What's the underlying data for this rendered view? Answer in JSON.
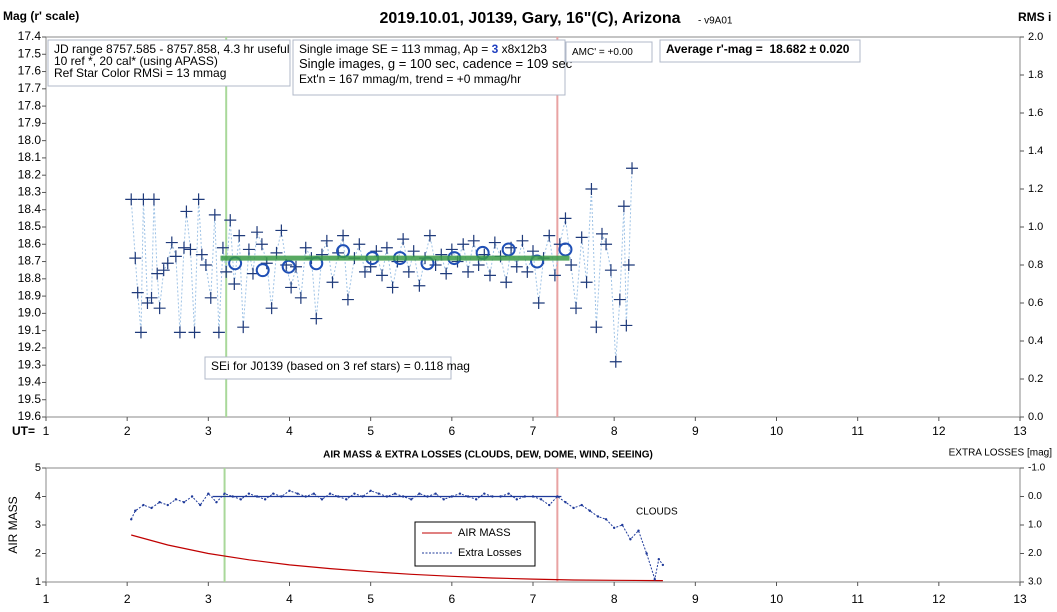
{
  "chart_data": [
    {
      "type": "scatter",
      "title": "2019.10.01, J0139, Gary, 16\"(C), Arizona",
      "subtitle": "- v9A01",
      "ylabel": "Mag (r' scale)",
      "y2label": "RMS i",
      "xlabel": "UT=",
      "xlim": [
        1,
        13
      ],
      "xticks": [
        1,
        2,
        3,
        4,
        5,
        6,
        7,
        8,
        9,
        10,
        11,
        12,
        13
      ],
      "ylim": [
        17.4,
        19.6
      ],
      "y_inverted": true,
      "yticks": [
        17.4,
        17.5,
        17.6,
        17.7,
        17.8,
        17.9,
        {
          "value": 18.0,
          "label": "18.0"
        },
        18.1,
        18.2,
        18.3,
        18.4,
        18.5,
        18.6,
        18.7,
        18.8,
        18.9,
        {
          "value": 19.0,
          "label": "19.0"
        },
        19.1,
        19.2,
        19.3,
        19.4,
        19.5,
        19.6
      ],
      "y2lim": [
        0,
        2
      ],
      "y2ticks": [
        {
          "value": 0,
          "label": "0.0"
        },
        0.2,
        0.4,
        0.6,
        0.8,
        {
          "value": 1,
          "label": "1.0"
        },
        1.2,
        1.4,
        1.6,
        1.8,
        {
          "value": 2,
          "label": "2.0"
        }
      ],
      "vlines": [
        {
          "x": 3.22,
          "color": "#a9d89a"
        },
        {
          "x": 7.3,
          "color": "#e9a3a3"
        }
      ],
      "series": [
        {
          "marker": "plus",
          "color": "#1f3a7a",
          "line_color": "#9fc3e6",
          "x": [
            2.05,
            2.1,
            2.13,
            2.17,
            2.2,
            2.25,
            2.3,
            2.33,
            2.37,
            2.4,
            2.45,
            2.5,
            2.55,
            2.6,
            2.65,
            2.7,
            2.73,
            2.78,
            2.83,
            2.88,
            2.92,
            2.97,
            3.03,
            3.08,
            3.13,
            3.18,
            3.22,
            3.27,
            3.32,
            3.38,
            3.43,
            3.5,
            3.55,
            3.6,
            3.66,
            3.72,
            3.78,
            3.84,
            3.9,
            3.96,
            4.02,
            4.08,
            4.14,
            4.2,
            4.27,
            4.33,
            4.4,
            4.46,
            4.53,
            4.6,
            4.66,
            4.72,
            4.8,
            4.86,
            4.93,
            5.0,
            5.07,
            5.14,
            5.2,
            5.27,
            5.33,
            5.4,
            5.47,
            5.53,
            5.6,
            5.67,
            5.73,
            5.8,
            5.87,
            5.93,
            6.0,
            6.07,
            6.14,
            6.2,
            6.27,
            6.33,
            6.4,
            6.47,
            6.53,
            6.6,
            6.67,
            6.73,
            6.8,
            6.87,
            6.93,
            7.0,
            7.07,
            7.13,
            7.2,
            7.27,
            7.33,
            7.4,
            7.47,
            7.53,
            7.6,
            7.66,
            7.72,
            7.78,
            7.85,
            7.9,
            7.96,
            8.02,
            8.07,
            8.12,
            8.15,
            8.18,
            8.22
          ],
          "values": [
            18.34,
            18.68,
            18.88,
            19.11,
            18.34,
            18.94,
            18.91,
            18.34,
            18.77,
            18.97,
            18.75,
            18.71,
            18.59,
            18.67,
            19.11,
            18.62,
            18.41,
            18.63,
            19.11,
            18.34,
            18.66,
            18.72,
            18.91,
            18.43,
            19.11,
            18.62,
            18.76,
            18.46,
            18.83,
            18.55,
            19.08,
            18.63,
            18.77,
            18.53,
            18.6,
            18.71,
            18.97,
            18.65,
            18.52,
            18.72,
            18.85,
            18.73,
            18.91,
            18.62,
            18.68,
            19.03,
            18.66,
            18.58,
            18.82,
            18.65,
            18.55,
            18.92,
            18.68,
            18.6,
            18.76,
            18.73,
            18.64,
            18.78,
            18.62,
            18.85,
            18.7,
            18.57,
            18.76,
            18.64,
            18.84,
            18.68,
            18.55,
            18.72,
            18.66,
            18.77,
            18.63,
            18.7,
            18.6,
            18.76,
            18.58,
            18.72,
            18.66,
            18.78,
            18.59,
            18.67,
            18.82,
            18.62,
            18.73,
            18.58,
            18.76,
            18.64,
            18.94,
            18.68,
            18.55,
            18.78,
            18.6,
            18.45,
            18.72,
            18.97,
            18.56,
            18.82,
            18.28,
            19.08,
            18.54,
            18.6,
            18.75,
            19.28,
            18.92,
            18.38,
            19.07,
            18.72,
            18.16
          ]
        },
        {
          "marker": "circle",
          "color": "#1f4fb5",
          "x": [
            3.33,
            3.67,
            3.99,
            4.33,
            4.66,
            5.02,
            5.36,
            5.7,
            6.03,
            6.38,
            6.7,
            7.05,
            7.4
          ],
          "values": [
            18.71,
            18.75,
            18.73,
            18.71,
            18.64,
            18.68,
            18.68,
            18.71,
            18.68,
            18.65,
            18.63,
            18.7,
            18.63
          ]
        },
        {
          "marker": "none",
          "color": "#3a9a45",
          "width": 5,
          "x": [
            3.15,
            7.45
          ],
          "values": [
            18.68,
            18.68
          ]
        }
      ],
      "info_boxes": [
        {
          "lines": [
            [
              {
                "text": "JD range 8757.585 - 8757.858, 4.3 hr useful"
              }
            ],
            [
              {
                "text": "10 ref *, 20 cal* (using APASS)"
              }
            ],
            [
              {
                "text": "Ref Star Color RMSi = 13 mmag"
              }
            ]
          ]
        },
        {
          "lines": [
            [
              {
                "text": "Single image SE = 113 mmag, Ap = "
              },
              {
                "text": "3",
                "color": "#1f3fbf",
                "bold": true
              },
              {
                "text": " x8x12b3"
              }
            ],
            [
              {
                "text": "Single images, g = 100 sec, cadence = 109 sec"
              }
            ],
            [
              {
                "text": "Ext'n = 167 mmag/m, trend = +0 mmag/hr"
              }
            ]
          ]
        },
        {
          "lines": [
            [
              {
                "text": "AMC' = +0.00"
              }
            ]
          ]
        },
        {
          "lines": [
            [
              {
                "text": "Average r'-mag =  18.682 ± 0.020",
                "bold": true
              }
            ]
          ]
        },
        {
          "lines": [
            [
              {
                "text": "SEi for J0139 (based on 3 ref stars) = 0.118 mag"
              }
            ]
          ]
        }
      ]
    },
    {
      "type": "line",
      "title": "AIR MASS & EXTRA LOSSES (CLOUDS, DEW, DOME, WIND, SEEING)",
      "ylabel": "AIR MASS",
      "y2label": "EXTRA LOSSES [mag]",
      "annotation": "CLOUDS",
      "xlim": [
        1,
        13
      ],
      "xticks": [
        1,
        2,
        3,
        4,
        5,
        6,
        7,
        8,
        9,
        10,
        11,
        12,
        13
      ],
      "ylim": [
        1,
        5
      ],
      "yticks": [
        1,
        2,
        3,
        4,
        5
      ],
      "y2lim": [
        -1,
        3
      ],
      "y2_inverted": true,
      "y2ticks": [
        {
          "value": -1,
          "label": "-1.0"
        },
        {
          "value": 0,
          "label": "0.0"
        },
        {
          "value": 1,
          "label": "1.0"
        },
        {
          "value": 2,
          "label": "2.0"
        },
        {
          "value": 3,
          "label": "3.0"
        }
      ],
      "vlines": [
        {
          "x": 3.2,
          "color": "#a9d89a"
        },
        {
          "x": 7.3,
          "color": "#e9a3a3"
        }
      ],
      "series": [
        {
          "name": "AIR MASS",
          "color": "#c00000",
          "x": [
            2.05,
            2.5,
            3,
            3.5,
            4,
            4.5,
            5,
            5.5,
            6,
            6.5,
            7,
            7.5,
            8,
            8.6
          ],
          "values": [
            2.65,
            2.3,
            2.0,
            1.78,
            1.6,
            1.47,
            1.36,
            1.27,
            1.2,
            1.14,
            1.1,
            1.07,
            1.06,
            1.05
          ]
        },
        {
          "name": "Extra Losses",
          "color": "#1f3a9a",
          "axis": "y2",
          "dotted": true,
          "x": [
            2.05,
            2.1,
            2.2,
            2.3,
            2.4,
            2.5,
            2.6,
            2.7,
            2.8,
            2.9,
            3.0,
            3.1,
            3.2,
            3.3,
            3.4,
            3.5,
            3.6,
            3.7,
            3.8,
            3.9,
            4.0,
            4.1,
            4.2,
            4.3,
            4.4,
            4.5,
            4.6,
            4.7,
            4.8,
            4.9,
            5.0,
            5.1,
            5.2,
            5.3,
            5.4,
            5.5,
            5.6,
            5.7,
            5.8,
            5.9,
            6.0,
            6.1,
            6.2,
            6.3,
            6.4,
            6.5,
            6.6,
            6.7,
            6.8,
            6.9,
            7.0,
            7.1,
            7.2,
            7.3,
            7.4,
            7.5,
            7.6,
            7.7,
            7.8,
            7.9,
            8.0,
            8.1,
            8.2,
            8.3,
            8.4,
            8.5,
            8.55,
            8.6
          ],
          "values": [
            0.8,
            0.5,
            0.3,
            0.4,
            0.2,
            0.3,
            0.1,
            0.2,
            0.0,
            0.3,
            -0.1,
            0.2,
            -0.1,
            0.0,
            0.1,
            -0.1,
            0.0,
            0.1,
            -0.1,
            0.0,
            -0.2,
            -0.1,
            0.0,
            -0.1,
            0.1,
            -0.1,
            0.0,
            0.1,
            -0.1,
            0.0,
            -0.2,
            -0.1,
            0.0,
            -0.1,
            0.0,
            0.1,
            -0.1,
            0.0,
            -0.1,
            0.1,
            0.0,
            -0.1,
            0.0,
            0.1,
            -0.1,
            0.0,
            0.0,
            -0.1,
            0.1,
            0.0,
            0.0,
            0.1,
            0.3,
            0.0,
            0.2,
            0.4,
            0.3,
            0.5,
            0.7,
            0.8,
            1.1,
            1.0,
            1.5,
            1.2,
            2.0,
            2.9,
            2.2,
            2.4
          ]
        },
        {
          "color": "#1f3a9a",
          "axis": "y2",
          "x": [
            3.05,
            7.35
          ],
          "values": [
            0,
            0
          ]
        }
      ]
    }
  ]
}
